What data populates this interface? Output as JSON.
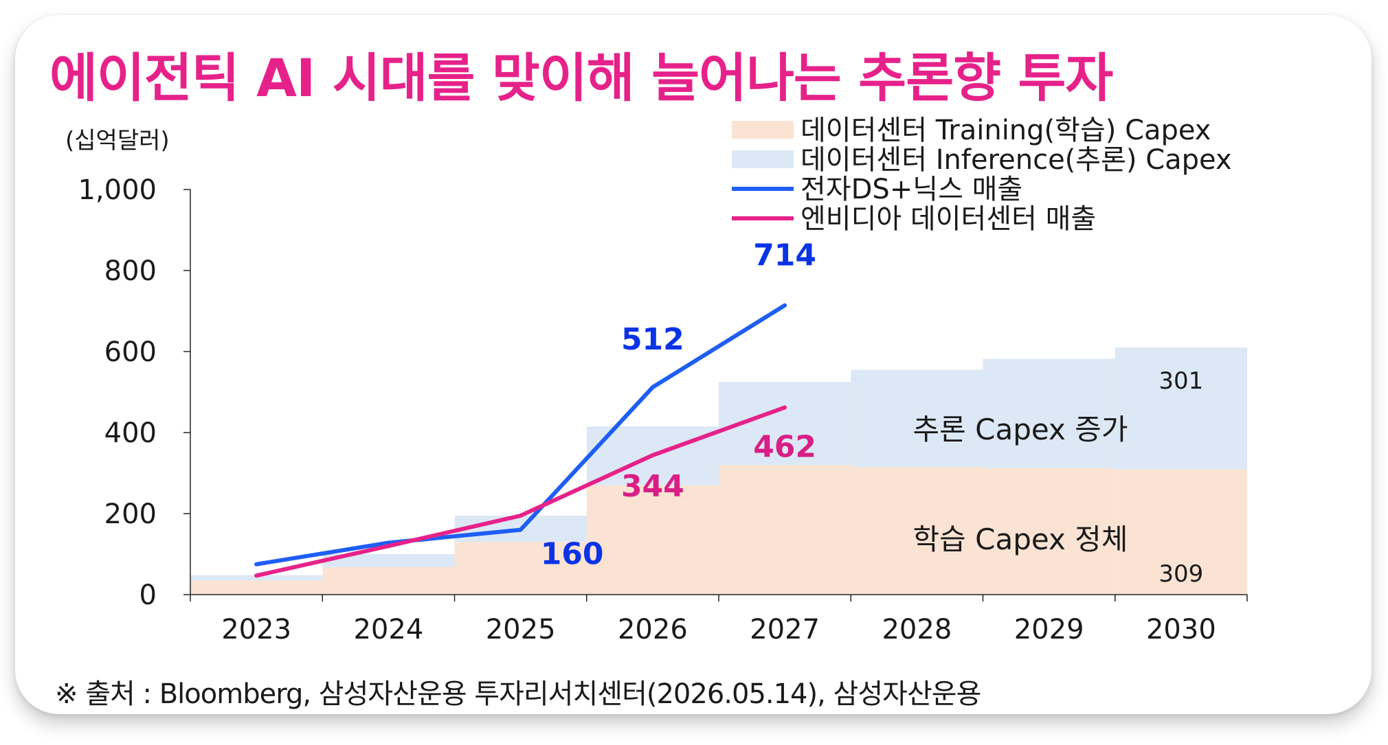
{
  "title": "에이전틱 AI 시대를 맞이해 늘어나는 추론향 투자",
  "source": "※ 출처 : Bloomberg, 삼성자산운용 투자리서치센터(2026.05.14), 삼성자산운용",
  "chart_data": {
    "type": "bar",
    "title": "에이전틱 AI 시대를 맞이해 늘어나는 추론향 투자",
    "unit_label": "(십억달러)",
    "categories": [
      "2023",
      "2024",
      "2025",
      "2026",
      "2027",
      "2028",
      "2029",
      "2030"
    ],
    "ylim": [
      0,
      1000
    ],
    "yticks": [
      0,
      200,
      400,
      600,
      800,
      1000
    ],
    "ytick_labels": [
      "0",
      "200",
      "400",
      "600",
      "800",
      "1,000"
    ],
    "stacked_bars": [
      {
        "name": "데이터센터 Training(학습) Capex",
        "color": "#fbe3d3",
        "values": [
          35,
          68,
          130,
          270,
          320,
          315,
          312,
          309
        ]
      },
      {
        "name": "데이터센터 Inference(추론) Capex",
        "color": "#dce8f5",
        "values": [
          13,
          32,
          65,
          145,
          205,
          240,
          270,
          301
        ]
      }
    ],
    "lines": [
      {
        "name": "전자DS+닉스 매출",
        "color": "#1e5ef5",
        "label_color": "#0a33e6",
        "x": [
          "2023",
          "2024",
          "2025",
          "2026",
          "2027"
        ],
        "values": [
          75,
          128,
          160,
          512,
          714
        ]
      },
      {
        "name": "엔비디아 데이터센터 매출",
        "color": "#e6228a",
        "label_color": "#d81f86",
        "x": [
          "2023",
          "2024",
          "2025",
          "2026",
          "2027"
        ],
        "values": [
          47,
          120,
          195,
          344,
          462
        ]
      }
    ],
    "data_labels": [
      {
        "text": "714",
        "series": "전자DS+닉스 매출",
        "year": "2027"
      },
      {
        "text": "512",
        "series": "전자DS+닉스 매출",
        "year": "2026"
      },
      {
        "text": "160",
        "series": "전자DS+닉스 매출",
        "year": "2025"
      },
      {
        "text": "462",
        "series": "엔비디아 데이터센터 매출",
        "year": "2027"
      },
      {
        "text": "344",
        "series": "엔비디아 데이터센터 매출",
        "year": "2026"
      }
    ],
    "bar_value_labels": [
      {
        "text": "301",
        "series": "데이터센터 Inference(추론) Capex",
        "year": "2030"
      },
      {
        "text": "309",
        "series": "데이터센터 Training(학습) Capex",
        "year": "2030"
      }
    ],
    "annotations": [
      {
        "text": "추론 Capex 증가"
      },
      {
        "text": "학습 Capex 정체"
      }
    ],
    "legend_position": "top-right",
    "grid": false
  }
}
